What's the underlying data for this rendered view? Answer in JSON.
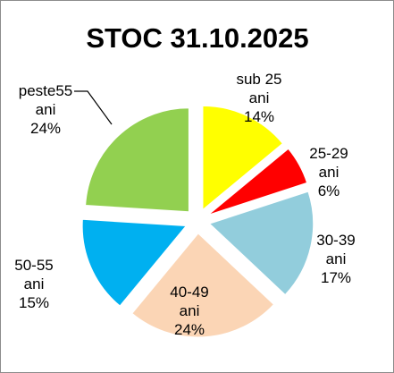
{
  "chart_data": {
    "type": "pie",
    "title": "STOC 31.10.2025",
    "exploded": true,
    "legend": "none",
    "slices": [
      {
        "label": [
          "sub 25",
          "ani",
          "14%"
        ],
        "value": 14,
        "color": "#ffff00"
      },
      {
        "label": [
          "25-29",
          "ani",
          "6%"
        ],
        "value": 6,
        "color": "#ff0000"
      },
      {
        "label": [
          "30-39",
          "ani",
          "17%"
        ],
        "value": 17,
        "color": "#92cddc"
      },
      {
        "label": [
          "40-49",
          "ani",
          "24%"
        ],
        "value": 24,
        "color": "#fbd5b5"
      },
      {
        "label": [
          "50-55",
          "ani",
          "15%"
        ],
        "value": 15,
        "color": "#00b0f0"
      },
      {
        "label": [
          "peste55",
          "ani",
          "24%"
        ],
        "value": 24,
        "color": "#92d050"
      }
    ]
  }
}
